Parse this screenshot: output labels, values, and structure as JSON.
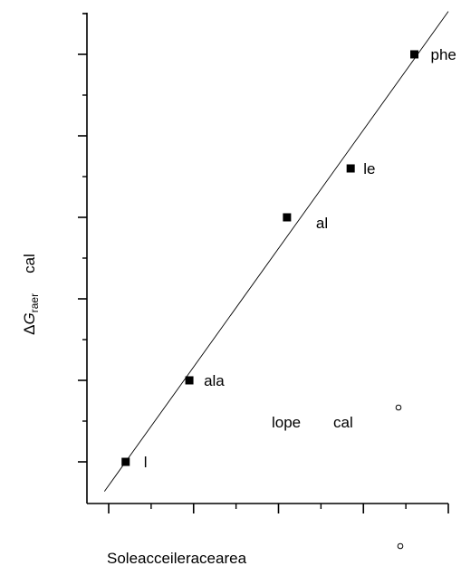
{
  "chart_data": {
    "type": "scatter",
    "title": "",
    "ylabel": {
      "delta": "Δ",
      "symbol": "G",
      "subscript": "raer",
      "unit": "cal"
    },
    "xlabel": "Soleacceileraceare­a",
    "annotation": {
      "left": "lope",
      "right": "cal"
    },
    "grid": false,
    "legend": "none",
    "series": [
      {
        "marker": "filled-square",
        "points": [
          {
            "x": 0.2,
            "y": 0.0,
            "label": "l"
          },
          {
            "x": 0.95,
            "y": 1.0,
            "label": "ala"
          },
          {
            "x": 2.1,
            "y": 3.0,
            "label": "al"
          },
          {
            "x": 2.85,
            "y": 3.6,
            "label": "le"
          },
          {
            "x": 3.6,
            "y": 5.0,
            "label": "phe"
          }
        ]
      }
    ],
    "fit_line": {
      "slope": 1.454,
      "intercept": -0.29,
      "x_range": [
        -0.05,
        4.0
      ]
    },
    "decorative_circles": [
      "open-circle",
      "open-circle"
    ]
  }
}
